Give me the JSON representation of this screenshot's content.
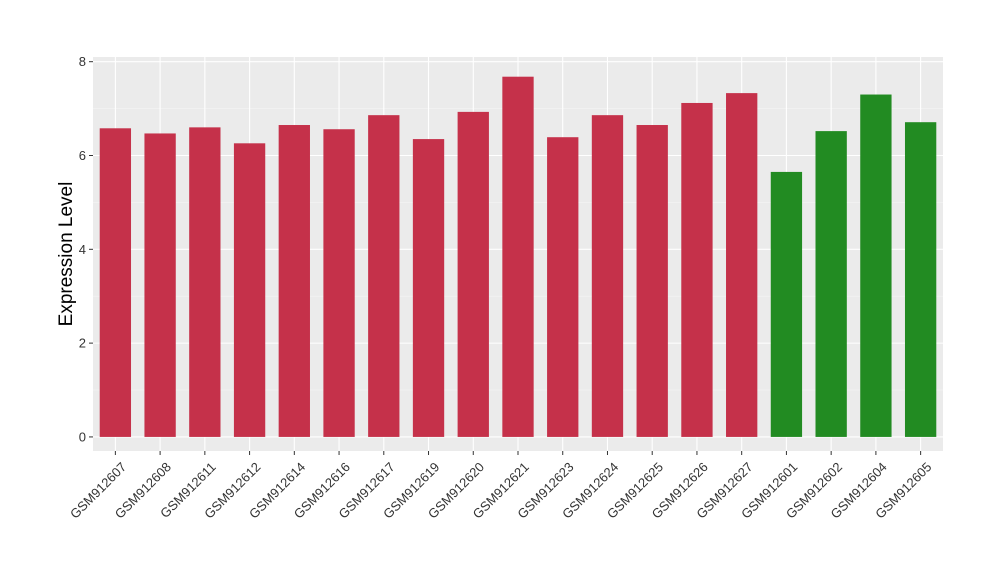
{
  "chart_data": {
    "type": "bar",
    "ylabel": "Expression Level",
    "xlabel": "",
    "ylim": [
      -0.3,
      8.1
    ],
    "yticks": [
      0,
      2,
      4,
      6,
      8
    ],
    "grid": true,
    "colors": {
      "group_a": "#c5314a",
      "group_b": "#228b22",
      "panel_background": "#ebebeb",
      "grid_major": "#ffffff",
      "grid_minor": "#f5f5f5"
    },
    "categories": [
      "GSM912607",
      "GSM912608",
      "GSM912611",
      "GSM912612",
      "GSM912614",
      "GSM912616",
      "GSM912617",
      "GSM912619",
      "GSM912620",
      "GSM912621",
      "GSM912623",
      "GSM912624",
      "GSM912625",
      "GSM912626",
      "GSM912627",
      "GSM912601",
      "GSM912602",
      "GSM912604",
      "GSM912605"
    ],
    "values": [
      6.58,
      6.47,
      6.6,
      6.26,
      6.65,
      6.56,
      6.86,
      6.35,
      6.93,
      7.68,
      6.39,
      6.86,
      6.65,
      7.12,
      7.33,
      5.65,
      6.52,
      7.3,
      6.71
    ],
    "groups": [
      "a",
      "a",
      "a",
      "a",
      "a",
      "a",
      "a",
      "a",
      "a",
      "a",
      "a",
      "a",
      "a",
      "a",
      "a",
      "b",
      "b",
      "b",
      "b"
    ]
  }
}
